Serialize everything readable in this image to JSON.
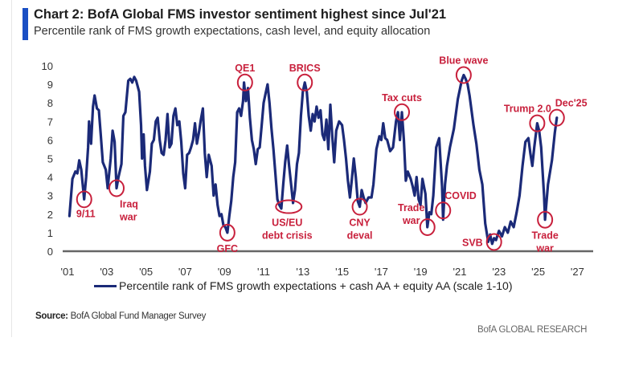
{
  "header": {
    "title": "Chart 2: BofA Global FMS investor sentiment highest since Jul'21",
    "subtitle": "Percentile rank of FMS growth expectations, cash level, and equity allocation"
  },
  "footer": {
    "source_label": "Source:",
    "source_text": "BofA Global Fund Manager Survey",
    "brand": "BofA GLOBAL RESEARCH"
  },
  "colors": {
    "line": "#1b2a78",
    "annotation": "#c8203c",
    "axis": "#666666",
    "title_accent": "#1a4fc4"
  },
  "chart_data": {
    "type": "line",
    "title": "Chart 2: BofA Global FMS investor sentiment highest since Jul'21",
    "subtitle": "Percentile rank of FMS growth expectations, cash level, and equity allocation",
    "xlabel": "",
    "ylabel": "",
    "ylim": [
      0,
      10
    ],
    "xlim": [
      2001,
      2027.8
    ],
    "yticks": [
      "0",
      "1",
      "2",
      "3",
      "4",
      "5",
      "6",
      "7",
      "8",
      "9",
      "10"
    ],
    "xticks": [
      {
        "x": 2001,
        "label": "'01"
      },
      {
        "x": 2003,
        "label": "'03"
      },
      {
        "x": 2005,
        "label": "'05"
      },
      {
        "x": 2007,
        "label": "'07"
      },
      {
        "x": 2009,
        "label": "'09"
      },
      {
        "x": 2011,
        "label": "'11"
      },
      {
        "x": 2013,
        "label": "'13"
      },
      {
        "x": 2015,
        "label": "'15"
      },
      {
        "x": 2017,
        "label": "'17"
      },
      {
        "x": 2019,
        "label": "'19"
      },
      {
        "x": 2021,
        "label": "'21"
      },
      {
        "x": 2023,
        "label": "'23"
      },
      {
        "x": 2025,
        "label": "'25"
      },
      {
        "x": 2027,
        "label": "'27"
      }
    ],
    "grid": false,
    "legend": {
      "position": "bottom",
      "entries": [
        "Percentile rank of FMS growth expectations + cash AA + equity AA (scale 1-10)"
      ]
    },
    "series": [
      {
        "name": "Percentile rank of FMS growth expectations + cash AA + equity AA (scale 1-10)",
        "points": [
          [
            2001.1,
            1.9
          ],
          [
            2001.25,
            3.9
          ],
          [
            2001.4,
            4.3
          ],
          [
            2001.5,
            4.2
          ],
          [
            2001.6,
            4.9
          ],
          [
            2001.7,
            4.4
          ],
          [
            2001.85,
            2.8
          ],
          [
            2001.95,
            4.0
          ],
          [
            2002.05,
            5.6
          ],
          [
            2002.1,
            7.0
          ],
          [
            2002.2,
            5.8
          ],
          [
            2002.3,
            7.8
          ],
          [
            2002.38,
            8.4
          ],
          [
            2002.5,
            7.7
          ],
          [
            2002.6,
            7.6
          ],
          [
            2002.7,
            6.2
          ],
          [
            2002.8,
            4.8
          ],
          [
            2002.95,
            4.4
          ],
          [
            2003.05,
            3.4
          ],
          [
            2003.2,
            5.0
          ],
          [
            2003.3,
            6.5
          ],
          [
            2003.4,
            5.9
          ],
          [
            2003.5,
            3.4
          ],
          [
            2003.6,
            4.0
          ],
          [
            2003.75,
            4.7
          ],
          [
            2003.85,
            7.3
          ],
          [
            2003.95,
            7.5
          ],
          [
            2004.1,
            9.2
          ],
          [
            2004.2,
            9.3
          ],
          [
            2004.3,
            9.1
          ],
          [
            2004.4,
            9.4
          ],
          [
            2004.5,
            9.2
          ],
          [
            2004.65,
            8.6
          ],
          [
            2004.75,
            6.8
          ],
          [
            2004.8,
            5.0
          ],
          [
            2004.88,
            6.3
          ],
          [
            2004.95,
            4.6
          ],
          [
            2005.05,
            3.3
          ],
          [
            2005.2,
            4.3
          ],
          [
            2005.3,
            5.8
          ],
          [
            2005.4,
            6.0
          ],
          [
            2005.5,
            7.0
          ],
          [
            2005.6,
            7.2
          ],
          [
            2005.7,
            6.0
          ],
          [
            2005.8,
            5.3
          ],
          [
            2005.9,
            5.2
          ],
          [
            2006.0,
            6.0
          ],
          [
            2006.1,
            7.4
          ],
          [
            2006.2,
            5.6
          ],
          [
            2006.3,
            5.8
          ],
          [
            2006.4,
            7.3
          ],
          [
            2006.5,
            7.7
          ],
          [
            2006.6,
            6.8
          ],
          [
            2006.7,
            7.0
          ],
          [
            2006.8,
            5.9
          ],
          [
            2006.9,
            4.2
          ],
          [
            2007.0,
            3.4
          ],
          [
            2007.1,
            5.2
          ],
          [
            2007.2,
            5.3
          ],
          [
            2007.3,
            5.6
          ],
          [
            2007.4,
            6.0
          ],
          [
            2007.5,
            6.9
          ],
          [
            2007.6,
            5.8
          ],
          [
            2007.7,
            6.4
          ],
          [
            2007.8,
            7.1
          ],
          [
            2007.9,
            7.7
          ],
          [
            2008.0,
            5.3
          ],
          [
            2008.1,
            4.0
          ],
          [
            2008.2,
            5.2
          ],
          [
            2008.35,
            4.6
          ],
          [
            2008.45,
            3.0
          ],
          [
            2008.55,
            3.6
          ],
          [
            2008.65,
            2.5
          ],
          [
            2008.75,
            1.9
          ],
          [
            2008.85,
            2.0
          ],
          [
            2008.95,
            1.4
          ],
          [
            2009.05,
            1.3
          ],
          [
            2009.15,
            1.0
          ],
          [
            2009.25,
            1.9
          ],
          [
            2009.35,
            2.7
          ],
          [
            2009.45,
            4.0
          ],
          [
            2009.55,
            4.8
          ],
          [
            2009.65,
            7.5
          ],
          [
            2009.75,
            7.7
          ],
          [
            2009.85,
            7.3
          ],
          [
            2009.95,
            8.1
          ],
          [
            2010.0,
            9.1
          ],
          [
            2010.1,
            8.1
          ],
          [
            2010.2,
            8.8
          ],
          [
            2010.3,
            7.2
          ],
          [
            2010.4,
            6.0
          ],
          [
            2010.5,
            5.5
          ],
          [
            2010.6,
            4.7
          ],
          [
            2010.7,
            5.5
          ],
          [
            2010.8,
            5.6
          ],
          [
            2010.9,
            6.8
          ],
          [
            2011.0,
            8.0
          ],
          [
            2011.1,
            8.5
          ],
          [
            2011.2,
            9.0
          ],
          [
            2011.3,
            8.0
          ],
          [
            2011.4,
            6.6
          ],
          [
            2011.5,
            5.5
          ],
          [
            2011.6,
            4.2
          ],
          [
            2011.7,
            2.8
          ],
          [
            2011.8,
            2.5
          ],
          [
            2011.9,
            2.3
          ],
          [
            2012.0,
            3.6
          ],
          [
            2012.1,
            4.8
          ],
          [
            2012.2,
            5.7
          ],
          [
            2012.3,
            4.6
          ],
          [
            2012.4,
            3.6
          ],
          [
            2012.5,
            2.6
          ],
          [
            2012.6,
            3.3
          ],
          [
            2012.7,
            4.7
          ],
          [
            2012.8,
            5.3
          ],
          [
            2012.9,
            7.3
          ],
          [
            2013.0,
            8.6
          ],
          [
            2013.1,
            9.1
          ],
          [
            2013.2,
            8.6
          ],
          [
            2013.3,
            7.3
          ],
          [
            2013.4,
            6.5
          ],
          [
            2013.5,
            7.4
          ],
          [
            2013.6,
            7.0
          ],
          [
            2013.7,
            7.8
          ],
          [
            2013.8,
            7.2
          ],
          [
            2013.9,
            7.6
          ],
          [
            2014.0,
            6.3
          ],
          [
            2014.1,
            6.0
          ],
          [
            2014.2,
            7.1
          ],
          [
            2014.3,
            5.5
          ],
          [
            2014.4,
            7.9
          ],
          [
            2014.5,
            6.2
          ],
          [
            2014.6,
            4.8
          ],
          [
            2014.7,
            6.5
          ],
          [
            2014.85,
            7.0
          ],
          [
            2015.0,
            6.8
          ],
          [
            2015.1,
            6.0
          ],
          [
            2015.2,
            5.0
          ],
          [
            2015.3,
            3.8
          ],
          [
            2015.4,
            2.9
          ],
          [
            2015.5,
            3.9
          ],
          [
            2015.6,
            5.0
          ],
          [
            2015.7,
            4.0
          ],
          [
            2015.8,
            2.7
          ],
          [
            2015.9,
            2.4
          ],
          [
            2016.0,
            3.3
          ],
          [
            2016.1,
            2.9
          ],
          [
            2016.2,
            2.6
          ],
          [
            2016.35,
            2.9
          ],
          [
            2016.5,
            2.9
          ],
          [
            2016.6,
            3.6
          ],
          [
            2016.75,
            5.5
          ],
          [
            2016.9,
            6.2
          ],
          [
            2017.0,
            6.0
          ],
          [
            2017.1,
            6.9
          ],
          [
            2017.2,
            6.1
          ],
          [
            2017.3,
            6.0
          ],
          [
            2017.45,
            5.4
          ],
          [
            2017.6,
            5.6
          ],
          [
            2017.75,
            7.0
          ],
          [
            2017.85,
            7.5
          ],
          [
            2017.95,
            6.0
          ],
          [
            2018.05,
            7.5
          ],
          [
            2018.15,
            6.0
          ],
          [
            2018.25,
            3.8
          ],
          [
            2018.35,
            4.3
          ],
          [
            2018.5,
            3.9
          ],
          [
            2018.6,
            3.5
          ],
          [
            2018.7,
            3.0
          ],
          [
            2018.8,
            4.0
          ],
          [
            2018.9,
            2.8
          ],
          [
            2019.0,
            2.5
          ],
          [
            2019.1,
            3.9
          ],
          [
            2019.25,
            3.1
          ],
          [
            2019.35,
            1.3
          ],
          [
            2019.45,
            2.1
          ],
          [
            2019.55,
            2.0
          ],
          [
            2019.65,
            3.0
          ],
          [
            2019.8,
            5.6
          ],
          [
            2019.95,
            6.1
          ],
          [
            2020.1,
            3.5
          ],
          [
            2020.15,
            1.7
          ],
          [
            2020.25,
            3.6
          ],
          [
            2020.35,
            4.6
          ],
          [
            2020.5,
            5.6
          ],
          [
            2020.7,
            6.6
          ],
          [
            2020.9,
            8.2
          ],
          [
            2021.1,
            9.2
          ],
          [
            2021.2,
            9.5
          ],
          [
            2021.3,
            9.3
          ],
          [
            2021.4,
            9.0
          ],
          [
            2021.5,
            8.4
          ],
          [
            2021.7,
            6.8
          ],
          [
            2021.85,
            5.8
          ],
          [
            2022.0,
            4.4
          ],
          [
            2022.15,
            3.6
          ],
          [
            2022.3,
            1.5
          ],
          [
            2022.45,
            0.5
          ],
          [
            2022.55,
            0.9
          ],
          [
            2022.65,
            0.4
          ],
          [
            2022.75,
            0.7
          ],
          [
            2022.85,
            0.6
          ],
          [
            2023.0,
            1.1
          ],
          [
            2023.15,
            0.8
          ],
          [
            2023.3,
            1.3
          ],
          [
            2023.45,
            1.0
          ],
          [
            2023.6,
            1.6
          ],
          [
            2023.75,
            1.3
          ],
          [
            2023.9,
            2.1
          ],
          [
            2024.05,
            3.0
          ],
          [
            2024.2,
            4.6
          ],
          [
            2024.35,
            5.9
          ],
          [
            2024.5,
            6.1
          ],
          [
            2024.6,
            5.3
          ],
          [
            2024.7,
            4.6
          ],
          [
            2024.8,
            5.6
          ],
          [
            2024.95,
            6.9
          ],
          [
            2025.05,
            6.5
          ],
          [
            2025.15,
            5.6
          ],
          [
            2025.3,
            3.0
          ],
          [
            2025.35,
            1.7
          ],
          [
            2025.5,
            3.6
          ],
          [
            2025.7,
            4.9
          ],
          [
            2025.85,
            6.4
          ],
          [
            2025.95,
            7.2
          ]
        ]
      }
    ],
    "annotations": [
      {
        "label": "9/11",
        "at": [
          2001.85,
          2.8
        ],
        "text_pos": "below"
      },
      {
        "label": "Iraq war",
        "at": [
          2003.5,
          3.4
        ],
        "text_pos": "below-right"
      },
      {
        "label": "GFC",
        "at": [
          2009.15,
          1.0
        ],
        "text_pos": "below"
      },
      {
        "label": "QE1",
        "at": [
          2010.05,
          9.1
        ],
        "text_pos": "above"
      },
      {
        "label": "US/EU debt crisis",
        "at": [
          2012.2,
          2.4
        ],
        "text_pos": "below"
      },
      {
        "label": "BRICS",
        "at": [
          2013.1,
          9.1
        ],
        "text_pos": "above"
      },
      {
        "label": "CNY deval",
        "at": [
          2015.9,
          2.4
        ],
        "text_pos": "below"
      },
      {
        "label": "Tax cuts",
        "at": [
          2018.05,
          7.5
        ],
        "text_pos": "above"
      },
      {
        "label": "Trade war",
        "at": [
          2019.35,
          1.3
        ],
        "text_pos": "above-left"
      },
      {
        "label": "COVID",
        "at": [
          2020.15,
          2.2
        ],
        "text_pos": "right"
      },
      {
        "label": "Blue wave",
        "at": [
          2021.2,
          9.5
        ],
        "text_pos": "above"
      },
      {
        "label": "SVB",
        "at": [
          2022.75,
          0.5
        ],
        "text_pos": "left"
      },
      {
        "label": "Trump 2.0",
        "at": [
          2024.95,
          6.9
        ],
        "text_pos": "above"
      },
      {
        "label": "Trade war",
        "at": [
          2025.35,
          1.7
        ],
        "text_pos": "below"
      },
      {
        "label": "Dec'25",
        "at": [
          2025.95,
          7.2
        ],
        "text_pos": "above"
      }
    ]
  }
}
